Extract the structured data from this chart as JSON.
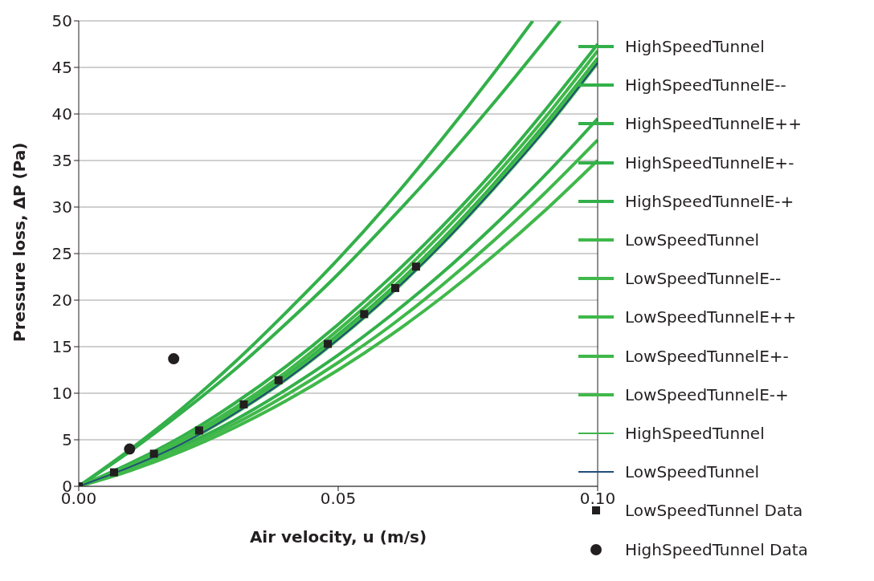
{
  "chart_data": {
    "type": "line",
    "xlabel": "Air velocity, u (m/s)",
    "ylabel": "Pressure loss, ΔP (Pa)",
    "xlim": [
      0,
      0.1
    ],
    "xticks": [
      {
        "value": 0,
        "label": "0.00"
      },
      {
        "value": 0.05,
        "label": "0.05"
      },
      {
        "value": 0.1,
        "label": "0.10"
      }
    ],
    "ylim": [
      0,
      50
    ],
    "yticks": [
      0,
      5,
      10,
      15,
      20,
      25,
      30,
      35,
      40,
      45,
      50
    ],
    "grid": "y",
    "legend": "right",
    "series": [
      {
        "name": "HighSpeedTunnel",
        "color": "#33b04a",
        "x": [
          0,
          0.01,
          0.02,
          0.03,
          0.04,
          0.05,
          0.06,
          0.07,
          0.08,
          0.09,
          0.1
        ],
        "values": [
          0,
          2.5,
          5.4,
          8.9,
          12.9,
          17.4,
          22.4,
          27.9,
          33.9,
          40.5,
          47.5
        ]
      },
      {
        "name": "HighSpeedTunnelE--",
        "color": "#33b04a",
        "x": [
          0,
          0.01,
          0.02,
          0.03,
          0.04,
          0.05,
          0.06,
          0.07,
          0.08,
          0.0875
        ],
        "values": [
          0,
          4,
          8.4,
          13.3,
          18.7,
          24.4,
          30.6,
          37.3,
          44.4,
          50
        ]
      },
      {
        "name": "HighSpeedTunnelE++",
        "color": "#33b04a",
        "x": [
          0,
          0.01,
          0.02,
          0.03,
          0.04,
          0.05,
          0.06,
          0.07,
          0.08,
          0.09,
          0.1
        ],
        "values": [
          0,
          1.9,
          4.3,
          7.1,
          10.4,
          14.1,
          18.3,
          22.9,
          28,
          33.5,
          39.5
        ]
      },
      {
        "name": "HighSpeedTunnelE+-",
        "color": "#33b04a",
        "x": [
          0,
          0.01,
          0.02,
          0.03,
          0.04,
          0.05,
          0.06,
          0.07,
          0.08,
          0.0928
        ],
        "values": [
          0,
          3.8,
          8,
          12.5,
          17.5,
          22.8,
          28.6,
          34.7,
          41.2,
          50
        ]
      },
      {
        "name": "HighSpeedTunnelE-+",
        "color": "#33b04a",
        "x": [
          0,
          0.01,
          0.02,
          0.03,
          0.04,
          0.05,
          0.06,
          0.07,
          0.08,
          0.09,
          0.1
        ],
        "values": [
          0,
          2.2,
          4.9,
          8.1,
          11.9,
          16.3,
          21.1,
          26.5,
          32.5,
          39,
          46
        ]
      },
      {
        "name": "LowSpeedTunnel",
        "color": "#40b84a",
        "x": [
          0,
          0.01,
          0.02,
          0.03,
          0.04,
          0.05,
          0.06,
          0.07,
          0.08,
          0.09,
          0.1
        ],
        "values": [
          0,
          2.1,
          4.6,
          7.8,
          11.5,
          15.8,
          20.6,
          26,
          32,
          38.4,
          45.5
        ]
      },
      {
        "name": "LowSpeedTunnelE--",
        "color": "#40b84a",
        "x": [
          0,
          0.01,
          0.02,
          0.03,
          0.04,
          0.05,
          0.06,
          0.07,
          0.08,
          0.09,
          0.1
        ],
        "values": [
          0,
          2.1,
          4.8,
          8,
          11.7,
          16,
          20.9,
          26.3,
          32.2,
          38.7,
          45.8
        ]
      },
      {
        "name": "LowSpeedTunnelE++",
        "color": "#40b84a",
        "x": [
          0,
          0.01,
          0.02,
          0.03,
          0.04,
          0.05,
          0.06,
          0.07,
          0.08,
          0.09,
          0.1
        ],
        "values": [
          0,
          1.7,
          3.8,
          6.3,
          9.2,
          12.5,
          16.2,
          20.3,
          24.8,
          29.7,
          35
        ]
      },
      {
        "name": "LowSpeedTunnelE+-",
        "color": "#40b84a",
        "x": [
          0,
          0.01,
          0.02,
          0.03,
          0.04,
          0.05,
          0.06,
          0.07,
          0.08,
          0.09,
          0.1
        ],
        "values": [
          0,
          2.3,
          5.1,
          8.4,
          12.3,
          16.8,
          21.7,
          27.2,
          33.2,
          39.7,
          46.8
        ]
      },
      {
        "name": "LowSpeedTunnelE-+",
        "color": "#40b84a",
        "x": [
          0,
          0.01,
          0.02,
          0.03,
          0.04,
          0.05,
          0.06,
          0.07,
          0.08,
          0.09,
          0.1
        ],
        "values": [
          0,
          1.8,
          4.1,
          6.7,
          9.8,
          13.3,
          17.2,
          21.6,
          26.4,
          31.6,
          37.2
        ]
      },
      {
        "name": "HighSpeedTunnel",
        "color": "#3cb54a"
      },
      {
        "name": "LowSpeedTunnel",
        "color": "#1f4e79",
        "x": [
          0,
          0.01,
          0.02,
          0.03,
          0.04,
          0.05,
          0.06,
          0.07,
          0.08,
          0.09,
          0.1
        ],
        "values": [
          0,
          2.1,
          4.6,
          7.8,
          11.5,
          15.8,
          20.6,
          26,
          32,
          38.4,
          45.5
        ]
      },
      {
        "name": "LowSpeedTunnel Data",
        "type": "scatter",
        "marker": "square",
        "color": "#231f20",
        "x": [
          0,
          0.0068,
          0.0145,
          0.0232,
          0.0318,
          0.0385,
          0.048,
          0.055,
          0.061,
          0.065
        ],
        "values": [
          0,
          1.5,
          3.5,
          6,
          8.8,
          11.4,
          15.3,
          18.5,
          21.3,
          23.6
        ]
      },
      {
        "name": "HighSpeedTunnel Data",
        "type": "scatter",
        "marker": "circle",
        "color": "#231f20",
        "x": [
          0.0098,
          0.0183
        ],
        "values": [
          4,
          13.7
        ]
      }
    ]
  }
}
